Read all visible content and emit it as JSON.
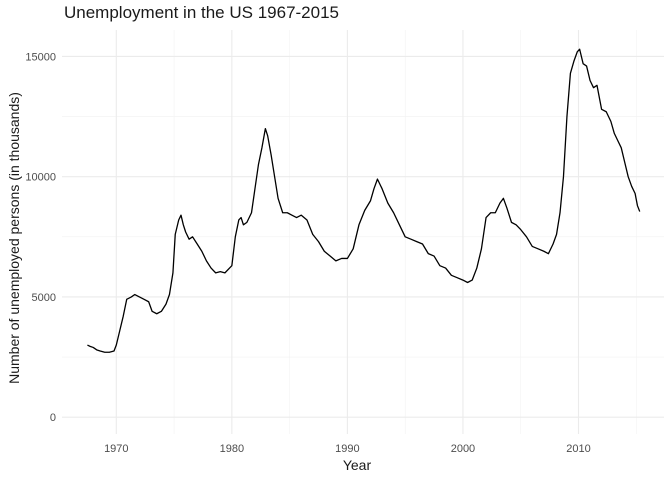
{
  "chart_data": {
    "type": "line",
    "title": "Unemployment in the US 1967-2015",
    "xlabel": "Year",
    "ylabel": "Number of unemployed persons (in thousands)",
    "xlim": [
      1965.3,
      2017.4
    ],
    "ylim": [
      -700,
      16100
    ],
    "x_ticks": [
      1970,
      1980,
      1990,
      2000,
      2010
    ],
    "x_minor_ticks": [
      1975,
      1985,
      1995,
      2005,
      2015
    ],
    "y_ticks": [
      0,
      5000,
      10000,
      15000
    ],
    "y_minor_ticks": [
      2500,
      7500,
      12500
    ],
    "grid": true,
    "legend": "none",
    "line_color": "#000000",
    "series": [
      {
        "x": [
          1967.5,
          1967.7,
          1968.0,
          1968.3,
          1968.6,
          1969.0,
          1969.4,
          1969.8,
          1970.0,
          1970.3,
          1970.6,
          1970.9,
          1971.3,
          1971.6,
          1972.0,
          1972.4,
          1972.8,
          1973.1,
          1973.5,
          1973.9,
          1974.3,
          1974.6,
          1974.9,
          1975.1,
          1975.4,
          1975.6,
          1975.8,
          1976.0,
          1976.3,
          1976.6,
          1977.0,
          1977.4,
          1977.8,
          1978.2,
          1978.6,
          1979.0,
          1979.4,
          1979.8,
          1980.0,
          1980.3,
          1980.6,
          1980.8,
          1981.0,
          1981.3,
          1981.7,
          1982.0,
          1982.3,
          1982.6,
          1982.9,
          1983.1,
          1983.4,
          1983.7,
          1984.0,
          1984.4,
          1984.8,
          1985.2,
          1985.6,
          1986.0,
          1986.5,
          1987.0,
          1987.5,
          1988.0,
          1988.5,
          1989.0,
          1989.5,
          1990.0,
          1990.5,
          1991.0,
          1991.5,
          1992.0,
          1992.3,
          1992.6,
          1993.0,
          1993.5,
          1994.0,
          1994.5,
          1995.0,
          1995.5,
          1996.0,
          1996.5,
          1997.0,
          1997.5,
          1998.0,
          1998.5,
          1999.0,
          1999.5,
          2000.0,
          2000.4,
          2000.8,
          2001.2,
          2001.6,
          2002.0,
          2002.4,
          2002.8,
          2003.2,
          2003.5,
          2003.8,
          2004.2,
          2004.6,
          2005.0,
          2005.5,
          2006.0,
          2006.5,
          2007.0,
          2007.4,
          2007.8,
          2008.1,
          2008.4,
          2008.7,
          2009.0,
          2009.3,
          2009.6,
          2009.9,
          2010.1,
          2010.4,
          2010.7,
          2011.0,
          2011.3,
          2011.6,
          2012.0,
          2012.4,
          2012.8,
          2013.1,
          2013.4,
          2013.7,
          2014.0,
          2014.3,
          2014.6,
          2014.9,
          2015.1,
          2015.3
        ],
        "values": [
          3000,
          2950,
          2900,
          2800,
          2750,
          2700,
          2700,
          2750,
          3000,
          3600,
          4200,
          4900,
          5000,
          5100,
          5000,
          4900,
          4800,
          4400,
          4300,
          4400,
          4700,
          5100,
          6000,
          7600,
          8200,
          8400,
          8000,
          7700,
          7400,
          7500,
          7200,
          6900,
          6500,
          6200,
          6000,
          6050,
          6000,
          6200,
          6300,
          7500,
          8200,
          8300,
          8000,
          8100,
          8500,
          9500,
          10500,
          11200,
          12000,
          11700,
          10900,
          10000,
          9100,
          8500,
          8500,
          8400,
          8300,
          8400,
          8200,
          7600,
          7300,
          6900,
          6700,
          6500,
          6600,
          6600,
          7000,
          8000,
          8600,
          9000,
          9500,
          9900,
          9500,
          8900,
          8500,
          8000,
          7500,
          7400,
          7300,
          7200,
          6800,
          6700,
          6300,
          6200,
          5900,
          5800,
          5700,
          5600,
          5700,
          6200,
          7000,
          8300,
          8500,
          8500,
          8900,
          9100,
          8700,
          8100,
          8000,
          7800,
          7500,
          7100,
          7000,
          6900,
          6800,
          7200,
          7600,
          8500,
          10000,
          12500,
          14300,
          14800,
          15200,
          15300,
          14700,
          14600,
          14000,
          13700,
          13800,
          12800,
          12700,
          12300,
          11800,
          11500,
          11200,
          10600,
          10000,
          9600,
          9300,
          8800,
          8550
        ]
      }
    ]
  }
}
